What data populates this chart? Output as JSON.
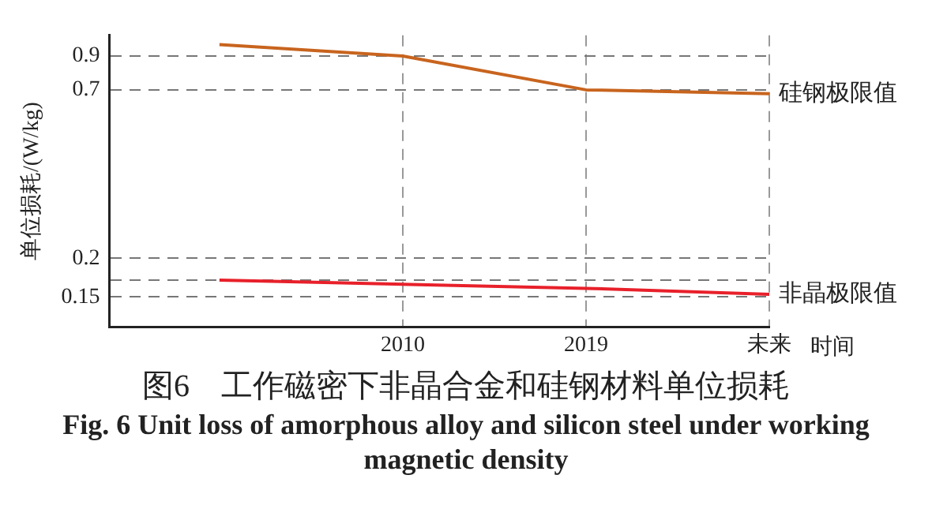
{
  "chart_data": {
    "type": "line",
    "title": "图6　工作磁密下非晶合金和硅钢材料单位损耗",
    "subtitle": "Fig. 6  Unit loss of amorphous alloy and silicon steel under working magnetic density",
    "xlabel": "时间",
    "ylabel": "单位损耗/(W/kg)",
    "categories": [
      null,
      "2010",
      "2019",
      "未来"
    ],
    "series": [
      {
        "color": "#c8641e",
        "values": [
          0.98,
          0.9,
          0.7,
          0.68
        ]
      },
      {
        "color": "#e8202a",
        "values": [
          0.17,
          null,
          0.16,
          0.153
        ]
      }
    ],
    "ylim": [
      0.12,
      1.05
    ],
    "yticks": [
      0.15,
      {
        "value": 0.17,
        "label": null
      },
      0.2,
      0.7,
      0.9
    ],
    "log": "y",
    "grid": true,
    "marker": "none",
    "line_style": "solid",
    "legend": false,
    "annotations": [
      {
        "text": "硅钢极限值",
        "x": "未来",
        "y": 0.68
      },
      {
        "text": "非晶极限值",
        "x": "未来",
        "y": 0.153
      }
    ]
  }
}
